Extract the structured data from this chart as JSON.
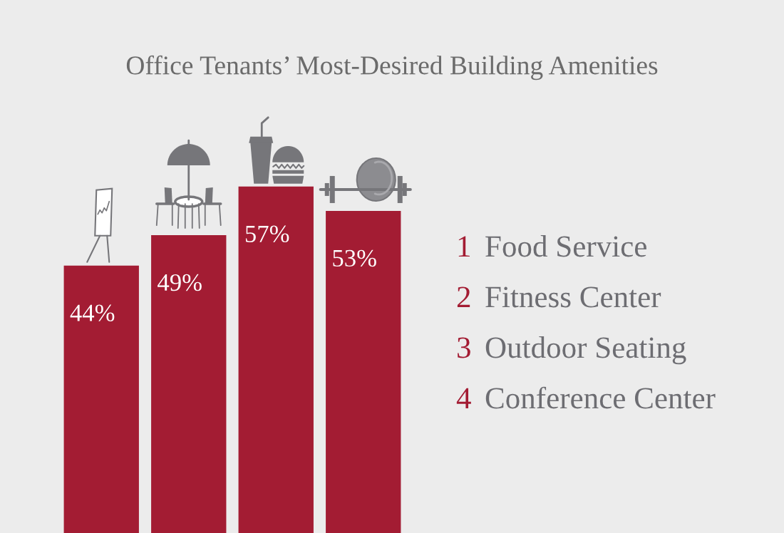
{
  "chart_data": {
    "type": "bar",
    "title": "Office Tenants’ Most-Desired Building Amenities",
    "categories": [
      null,
      null,
      null,
      null
    ],
    "values": [
      44,
      49,
      57,
      53
    ],
    "color": "#a31c33",
    "value_labels": [
      "44%",
      "49%",
      "57%",
      "53%"
    ],
    "annotations": [
      "1 Food Service",
      "2 Fitness Center",
      "3 Outdoor Seating",
      "4 Conference Center"
    ]
  }
}
